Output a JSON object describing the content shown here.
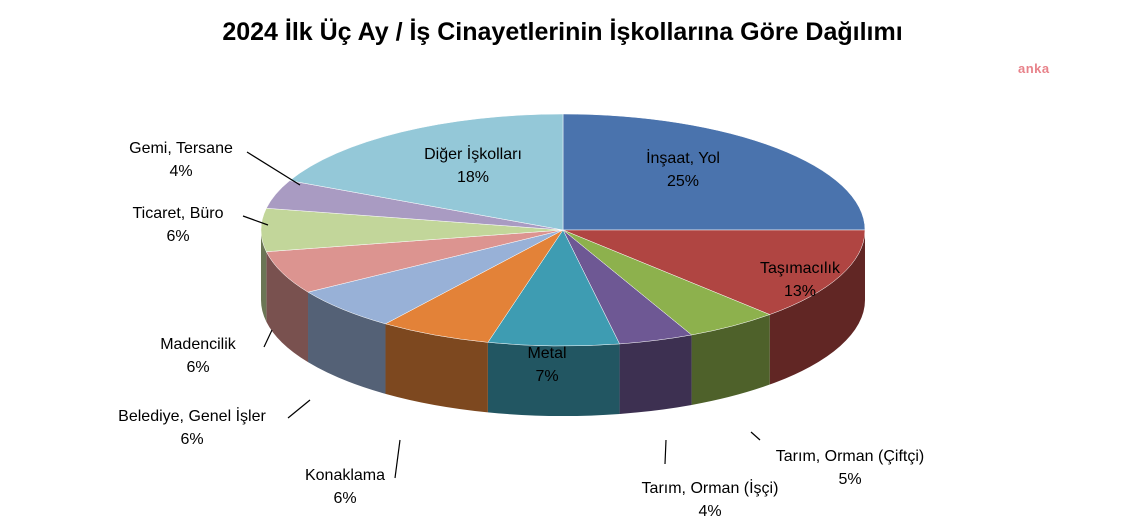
{
  "chart_data": {
    "type": "pie",
    "title": "2024 İlk Üç Ay / İş Cinayetlerinin İşkollarına Göre Dağılımı",
    "slices": [
      {
        "name": "İnşaat, Yol",
        "value": 25,
        "label_pct": "25%",
        "color": "#4a73ad"
      },
      {
        "name": "Taşımacılık",
        "value": 13,
        "label_pct": "13%",
        "color": "#b04542"
      },
      {
        "name": "Tarım, Orman (Çiftçi)",
        "value": 5,
        "label_pct": "5%",
        "color": "#8db14d"
      },
      {
        "name": "Tarım, Orman (İşçi)",
        "value": 4,
        "label_pct": "4%",
        "color": "#6e5894"
      },
      {
        "name": "Metal",
        "value": 7,
        "label_pct": "7%",
        "color": "#3e9cb2"
      },
      {
        "name": "Konaklama",
        "value": 6,
        "label_pct": "6%",
        "color": "#e38238"
      },
      {
        "name": "Belediye, Genel İşler",
        "value": 6,
        "label_pct": "6%",
        "color": "#98b1d7"
      },
      {
        "name": "Madencilik",
        "value": 6,
        "label_pct": "6%",
        "color": "#dc9490"
      },
      {
        "name": "Ticaret, Büro",
        "value": 6,
        "label_pct": "6%",
        "color": "#c2d69a"
      },
      {
        "name": "Gemi, Tersane",
        "value": 4,
        "label_pct": "4%",
        "color": "#a99bc2"
      },
      {
        "name": "Diğer İşkolları",
        "value": 18,
        "label_pct": "18%",
        "color": "#94c8d8"
      }
    ],
    "legend": "none",
    "style": "3d-pie"
  },
  "watermark": "anka"
}
